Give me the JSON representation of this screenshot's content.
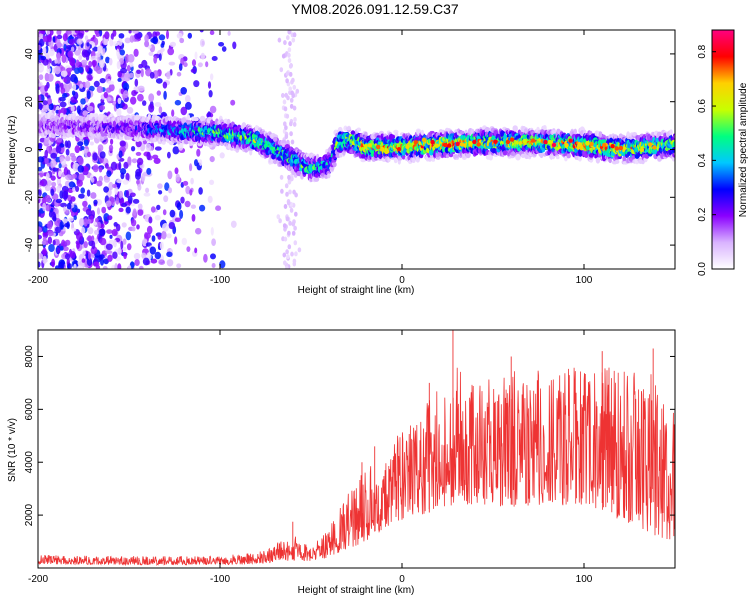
{
  "figure_title": "YM08.2026.091.12.59.C37",
  "chart_data": [
    {
      "type": "heatmap",
      "title": "YM08.2026.091.12.59.C37",
      "xlabel": "Height of straight line (km)",
      "ylabel": "Frequency (Hz)",
      "xlim": [
        -200,
        150
      ],
      "ylim": [
        -50,
        50
      ],
      "x_ticks": [
        -200,
        -100,
        0,
        100
      ],
      "y_ticks": [
        -40,
        -20,
        0,
        20,
        40
      ],
      "ridge": {
        "x": [
          -200,
          -150,
          -100,
          -80,
          -65,
          -50,
          -40,
          -35,
          -30,
          -20,
          0,
          20,
          50,
          75,
          100,
          120,
          150
        ],
        "center": [
          10,
          9,
          7,
          4,
          -2,
          -8,
          -6,
          3,
          4,
          1,
          1,
          2,
          3,
          3,
          2,
          0,
          2
        ],
        "peak_amplitude": [
          0.2,
          0.25,
          0.55,
          0.6,
          0.55,
          0.5,
          0.45,
          0.55,
          0.6,
          0.75,
          0.7,
          0.75,
          0.7,
          0.65,
          0.75,
          0.7,
          0.6
        ]
      },
      "colorbar": {
        "label": "Normalized spectral amplitude",
        "min": 0.0,
        "max": 0.88,
        "ticks": [
          "0.0",
          "0.2",
          "0.4",
          "0.6",
          "0.8"
        ],
        "colormap": [
          "#ffffff",
          "#d9b3ff",
          "#8a00ff",
          "#0000ff",
          "#00c8ff",
          "#00ff80",
          "#c8ff00",
          "#ffd000",
          "#ff0000",
          "#ff0080"
        ]
      }
    },
    {
      "type": "line",
      "xlabel": "Height of straight line (km)",
      "ylabel": "SNR (10 * v/v)",
      "xlim": [
        -200,
        150
      ],
      "ylim": [
        0,
        9000
      ],
      "x_ticks": [
        -200,
        -100,
        0,
        100
      ],
      "y_ticks": [
        2000,
        4000,
        6000,
        8000
      ],
      "line_color": "#ee3333",
      "envelope": {
        "x": [
          -200,
          -150,
          -100,
          -80,
          -70,
          -60,
          -50,
          -40,
          -30,
          -20,
          -10,
          0,
          10,
          20,
          30,
          40,
          60,
          80,
          100,
          120,
          140,
          150
        ],
        "low": [
          150,
          120,
          120,
          150,
          200,
          300,
          250,
          400,
          700,
          1000,
          1500,
          1800,
          2000,
          2200,
          2400,
          2400,
          2300,
          2400,
          2300,
          1800,
          1200,
          1000
        ],
        "high": [
          500,
          450,
          450,
          600,
          900,
          1300,
          800,
          1500,
          2800,
          4000,
          4500,
          5200,
          6000,
          6800,
          8000,
          7000,
          7500,
          7500,
          7600,
          7600,
          7500,
          6000
        ],
        "spikes": [
          [
            -60,
            1750
          ],
          [
            -22,
            4000
          ],
          [
            -15,
            4600
          ],
          [
            15,
            7000
          ],
          [
            28,
            9000
          ],
          [
            60,
            8000
          ],
          [
            110,
            8200
          ],
          [
            138,
            8300
          ]
        ]
      }
    }
  ]
}
